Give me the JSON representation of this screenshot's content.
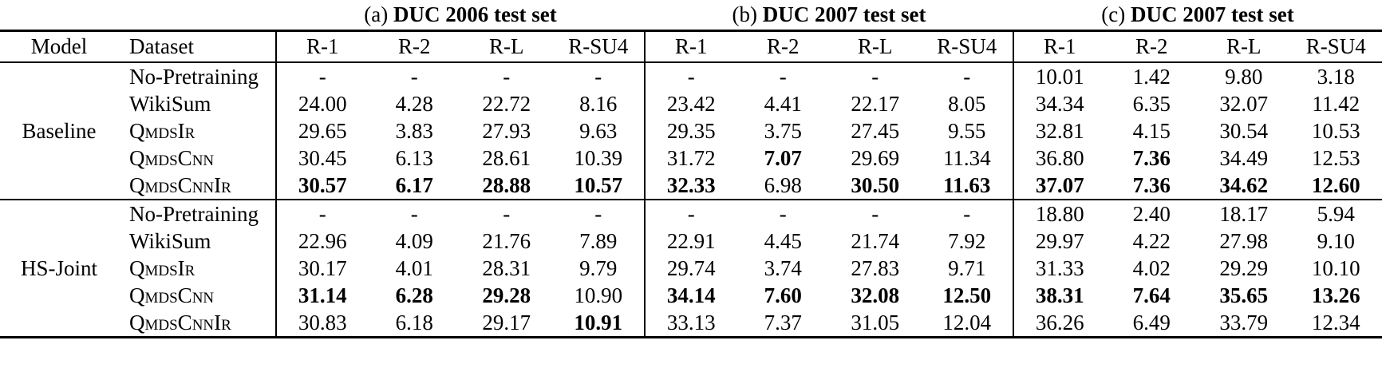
{
  "captions": [
    {
      "tag": "(a)",
      "title": "DUC 2006 test set"
    },
    {
      "tag": "(b)",
      "title": "DUC 2007 test set"
    },
    {
      "tag": "(c)",
      "title": "DUC 2007 test set"
    }
  ],
  "header": {
    "model": "Model",
    "dataset": "Dataset",
    "metrics": [
      "R-1",
      "R-2",
      "R-L",
      "R-SU4"
    ]
  },
  "groups": [
    {
      "model": "Baseline",
      "rows": [
        {
          "dataset": "No-Pretraining",
          "smallcaps": false,
          "values": [
            "-",
            "-",
            "-",
            "-",
            "-",
            "-",
            "-",
            "-",
            "10.01",
            "1.42",
            "9.80",
            "3.18"
          ],
          "bold_indices": []
        },
        {
          "dataset": "WikiSum",
          "smallcaps": false,
          "values": [
            "24.00",
            "4.28",
            "22.72",
            "8.16",
            "23.42",
            "4.41",
            "22.17",
            "8.05",
            "34.34",
            "6.35",
            "32.07",
            "11.42"
          ],
          "bold_indices": []
        },
        {
          "dataset": "QmdsIr",
          "smallcaps": true,
          "values": [
            "29.65",
            "3.83",
            "27.93",
            "9.63",
            "29.35",
            "3.75",
            "27.45",
            "9.55",
            "32.81",
            "4.15",
            "30.54",
            "10.53"
          ],
          "bold_indices": []
        },
        {
          "dataset": "QmdsCnn",
          "smallcaps": true,
          "values": [
            "30.45",
            "6.13",
            "28.61",
            "10.39",
            "31.72",
            "7.07",
            "29.69",
            "11.34",
            "36.80",
            "7.36",
            "34.49",
            "12.53"
          ],
          "bold_indices": [
            5,
            9
          ]
        },
        {
          "dataset": "QmdsCnnIr",
          "smallcaps": true,
          "values": [
            "30.57",
            "6.17",
            "28.88",
            "10.57",
            "32.33",
            "6.98",
            "30.50",
            "11.63",
            "37.07",
            "7.36",
            "34.62",
            "12.60"
          ],
          "bold_indices": [
            0,
            1,
            2,
            3,
            4,
            6,
            7,
            8,
            9,
            10,
            11
          ]
        }
      ]
    },
    {
      "model": "HS-Joint",
      "rows": [
        {
          "dataset": "No-Pretraining",
          "smallcaps": false,
          "values": [
            "-",
            "-",
            "-",
            "-",
            "-",
            "-",
            "-",
            "-",
            "18.80",
            "2.40",
            "18.17",
            "5.94"
          ],
          "bold_indices": []
        },
        {
          "dataset": "WikiSum",
          "smallcaps": false,
          "values": [
            "22.96",
            "4.09",
            "21.76",
            "7.89",
            "22.91",
            "4.45",
            "21.74",
            "7.92",
            "29.97",
            "4.22",
            "27.98",
            "9.10"
          ],
          "bold_indices": []
        },
        {
          "dataset": "QmdsIr",
          "smallcaps": true,
          "values": [
            "30.17",
            "4.01",
            "28.31",
            "9.79",
            "29.74",
            "3.74",
            "27.83",
            "9.71",
            "31.33",
            "4.02",
            "29.29",
            "10.10"
          ],
          "bold_indices": []
        },
        {
          "dataset": "QmdsCnn",
          "smallcaps": true,
          "values": [
            "31.14",
            "6.28",
            "29.28",
            "10.90",
            "34.14",
            "7.60",
            "32.08",
            "12.50",
            "38.31",
            "7.64",
            "35.65",
            "13.26"
          ],
          "bold_indices": [
            0,
            1,
            2,
            4,
            5,
            6,
            7,
            8,
            9,
            10,
            11
          ]
        },
        {
          "dataset": "QmdsCnnIr",
          "smallcaps": true,
          "values": [
            "30.83",
            "6.18",
            "29.17",
            "10.91",
            "33.13",
            "7.37",
            "31.05",
            "12.04",
            "36.26",
            "6.49",
            "33.79",
            "12.34"
          ],
          "bold_indices": [
            3
          ]
        }
      ]
    }
  ]
}
